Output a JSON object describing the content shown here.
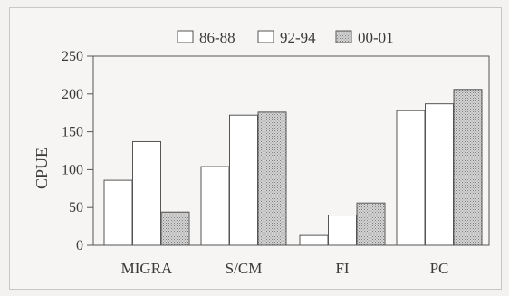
{
  "chart_data": {
    "type": "bar",
    "categories": [
      "MIGRA",
      "S/CM",
      "FI",
      "PC"
    ],
    "series": [
      {
        "name": "86-88",
        "values": [
          86,
          104,
          13,
          178
        ],
        "fill": "#ffffff"
      },
      {
        "name": "92-94",
        "values": [
          137,
          172,
          40,
          187
        ],
        "fill": "#ffffff"
      },
      {
        "name": "00-01",
        "values": [
          44,
          176,
          56,
          206
        ],
        "fill": "#c9c9c9",
        "pattern": "stipple"
      }
    ],
    "title": "",
    "xlabel": "",
    "ylabel": "CPUE",
    "ylim": [
      0,
      250
    ],
    "yticks": [
      0,
      50,
      100,
      150,
      200,
      250
    ],
    "grid": false,
    "legend_position": "top-right"
  }
}
